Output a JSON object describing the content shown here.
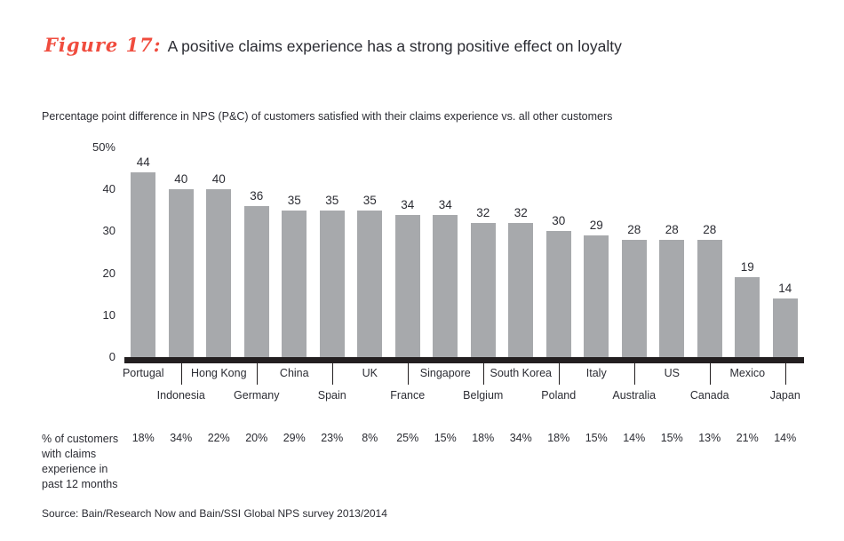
{
  "figure": {
    "label": "Figure 17:",
    "title": "A positive claims experience has a strong positive effect on loyalty"
  },
  "source": "Source: Bain/Research Now and Bain/SSI Global NPS survey 2013/2014",
  "claims_row": {
    "label_lines": [
      "% of customers",
      "with claims",
      "experience in",
      "past 12 months"
    ]
  },
  "colors": {
    "bar": "#a7a9ac",
    "axis": "#231f20",
    "text": "#2b2c33",
    "figure_label": "#f04c3e"
  },
  "chart_data": {
    "type": "bar",
    "title": "Percentage point difference in NPS (P&C) of customers satisfied with their claims experience vs. all other customers",
    "categories": [
      "Portugal",
      "Indonesia",
      "Hong Kong",
      "Germany",
      "China",
      "Spain",
      "UK",
      "France",
      "Singapore",
      "Belgium",
      "South Korea",
      "Poland",
      "Italy",
      "Australia",
      "US",
      "Canada",
      "Mexico",
      "Japan"
    ],
    "values": [
      44,
      40,
      40,
      36,
      35,
      35,
      35,
      34,
      34,
      32,
      32,
      30,
      29,
      28,
      28,
      28,
      19,
      14
    ],
    "claims_experience_pct": [
      "18%",
      "34%",
      "22%",
      "20%",
      "29%",
      "23%",
      "8%",
      "25%",
      "15%",
      "18%",
      "34%",
      "18%",
      "15%",
      "14%",
      "15%",
      "13%",
      "21%",
      "14%"
    ],
    "xlabel": "",
    "ylabel": "",
    "ylim": [
      0,
      50
    ],
    "ytick_labels": [
      "50%",
      "40",
      "30",
      "20",
      "10",
      "0"
    ],
    "ytick_values": [
      50,
      40,
      30,
      20,
      10,
      0
    ],
    "grid": false,
    "legend": "none",
    "x_label_layout": "staggered-two-rows-with-leader-lines"
  }
}
